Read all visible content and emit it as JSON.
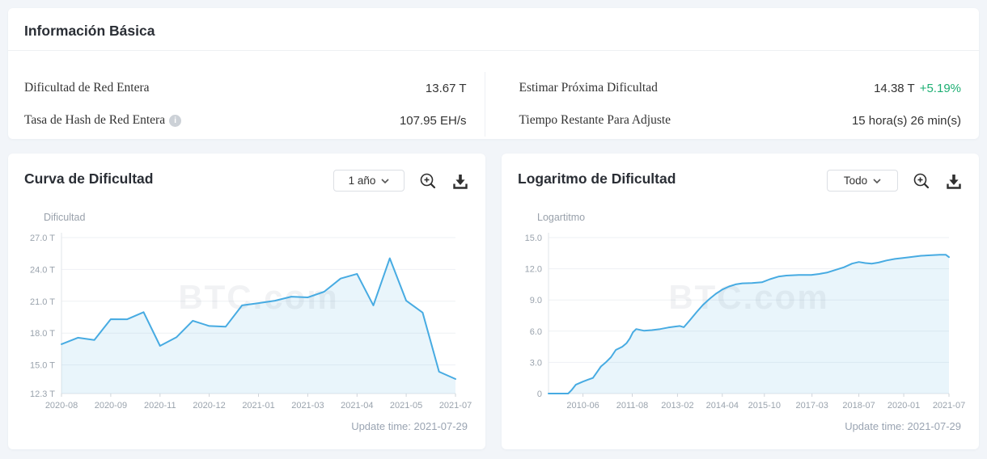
{
  "colors": {
    "positive": "#1daf73",
    "accent_blue": "#47abe2",
    "page_background": "#f2f5f9"
  },
  "info_card": {
    "title": "Información Básica",
    "info_icon_glyph": "i",
    "stats": [
      {
        "label": "Dificultad de Red Entera",
        "value": "13.67 T"
      },
      {
        "label": "Tasa de Hash de Red Entera",
        "value": "107.95 EH/s"
      },
      {
        "label": "Estimar Próxima Dificultad",
        "value": "14.38 T",
        "delta": "+5.19%"
      },
      {
        "label": "Tiempo Restante Para Adjuste",
        "value": "15 hora(s) 26 min(s)"
      }
    ]
  },
  "charts_ui": [
    {
      "range_selector": "1 año",
      "update_time": "Update time: 2021-07-29"
    },
    {
      "range_selector": "Todo",
      "update_time": "Update time: 2021-07-29"
    }
  ],
  "chart_data": [
    {
      "type": "area",
      "title": "Curva de Dificultad",
      "ylabel": "Dificultad",
      "watermark": "BTC.com",
      "ylim": [
        12.3,
        27.0
      ],
      "line_color": "#47abe2",
      "fill_color": "rgba(72,170,224,0.12)",
      "y_ticks": [
        {
          "v": 27.0,
          "label": "27.0 T"
        },
        {
          "v": 24.0,
          "label": "24.0 T"
        },
        {
          "v": 21.0,
          "label": "21.0 T"
        },
        {
          "v": 18.0,
          "label": "18.0 T"
        },
        {
          "v": 15.0,
          "label": "15.0 T"
        },
        {
          "v": 12.3,
          "label": "12.3 T"
        }
      ],
      "x_ticks": [
        {
          "f": 0,
          "label": "2020-08"
        },
        {
          "f": 0.125,
          "label": "2020-09"
        },
        {
          "f": 0.25,
          "label": "2020-11"
        },
        {
          "f": 0.375,
          "label": "2020-12"
        },
        {
          "f": 0.5,
          "label": "2021-01"
        },
        {
          "f": 0.625,
          "label": "2021-03"
        },
        {
          "f": 0.75,
          "label": "2021-04"
        },
        {
          "f": 0.875,
          "label": "2021-05"
        },
        {
          "f": 1,
          "label": "2021-07"
        }
      ],
      "values": [
        16.95,
        17.56,
        17.35,
        19.31,
        19.3,
        19.97,
        16.79,
        17.6,
        19.16,
        18.67,
        18.6,
        20.61,
        20.82,
        21.05,
        21.43,
        21.36,
        21.9,
        23.14,
        23.58,
        20.61,
        25.05,
        21.05,
        19.93,
        14.36,
        13.67
      ]
    },
    {
      "type": "area",
      "title": "Logaritmo de Dificultad",
      "ylabel": "Logartitmo",
      "watermark": "BTC.com",
      "ylim": [
        0,
        15.0
      ],
      "plot_left": 40,
      "line_color": "#47abe2",
      "fill_color": "rgba(72,170,224,0.12)",
      "y_ticks": [
        {
          "v": 15.0,
          "label": "15.0"
        },
        {
          "v": 12.0,
          "label": "12.0"
        },
        {
          "v": 9.0,
          "label": "9.0"
        },
        {
          "v": 6.0,
          "label": "6.0"
        },
        {
          "v": 3.0,
          "label": "3.0"
        },
        {
          "v": 0,
          "label": "0"
        }
      ],
      "x_ticks": [
        {
          "f": 0.086,
          "label": "2010-06"
        },
        {
          "f": 0.209,
          "label": "2011-08"
        },
        {
          "f": 0.322,
          "label": "2013-02"
        },
        {
          "f": 0.434,
          "label": "2014-04"
        },
        {
          "f": 0.539,
          "label": "2015-10"
        },
        {
          "f": 0.658,
          "label": "2017-03"
        },
        {
          "f": 0.775,
          "label": "2018-07"
        },
        {
          "f": 0.887,
          "label": "2020-01"
        },
        {
          "f": 1,
          "label": "2021-07"
        }
      ],
      "points": [
        [
          0,
          0
        ],
        [
          0.049,
          0
        ],
        [
          0.057,
          0.3
        ],
        [
          0.068,
          0.85
        ],
        [
          0.086,
          1.15
        ],
        [
          0.1,
          1.35
        ],
        [
          0.111,
          1.5
        ],
        [
          0.121,
          2.05
        ],
        [
          0.131,
          2.6
        ],
        [
          0.143,
          3.0
        ],
        [
          0.156,
          3.5
        ],
        [
          0.168,
          4.2
        ],
        [
          0.184,
          4.5
        ],
        [
          0.195,
          4.85
        ],
        [
          0.203,
          5.3
        ],
        [
          0.211,
          5.9
        ],
        [
          0.219,
          6.2
        ],
        [
          0.238,
          6.05
        ],
        [
          0.258,
          6.1
        ],
        [
          0.279,
          6.2
        ],
        [
          0.299,
          6.35
        ],
        [
          0.318,
          6.45
        ],
        [
          0.328,
          6.5
        ],
        [
          0.338,
          6.38
        ],
        [
          0.352,
          7.0
        ],
        [
          0.369,
          7.8
        ],
        [
          0.385,
          8.5
        ],
        [
          0.402,
          9.1
        ],
        [
          0.418,
          9.6
        ],
        [
          0.434,
          10.0
        ],
        [
          0.451,
          10.3
        ],
        [
          0.467,
          10.5
        ],
        [
          0.484,
          10.6
        ],
        [
          0.508,
          10.63
        ],
        [
          0.533,
          10.7
        ],
        [
          0.553,
          11.0
        ],
        [
          0.574,
          11.25
        ],
        [
          0.594,
          11.35
        ],
        [
          0.625,
          11.4
        ],
        [
          0.656,
          11.4
        ],
        [
          0.676,
          11.5
        ],
        [
          0.697,
          11.65
        ],
        [
          0.717,
          11.9
        ],
        [
          0.738,
          12.15
        ],
        [
          0.758,
          12.5
        ],
        [
          0.775,
          12.65
        ],
        [
          0.791,
          12.55
        ],
        [
          0.807,
          12.5
        ],
        [
          0.824,
          12.6
        ],
        [
          0.844,
          12.8
        ],
        [
          0.865,
          12.95
        ],
        [
          0.887,
          13.05
        ],
        [
          0.91,
          13.15
        ],
        [
          0.93,
          13.25
        ],
        [
          0.953,
          13.3
        ],
        [
          0.977,
          13.35
        ],
        [
          0.992,
          13.35
        ],
        [
          1,
          13.12
        ]
      ]
    }
  ]
}
